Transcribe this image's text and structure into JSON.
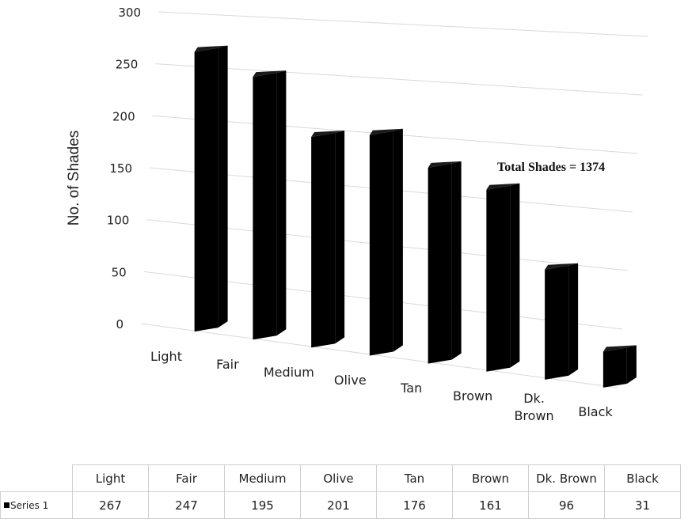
{
  "chart_data": {
    "type": "bar",
    "categories": [
      "Light",
      "Fair",
      "Medium",
      "Olive",
      "Tan",
      "Brown",
      "Dk. Brown",
      "Black"
    ],
    "series": [
      {
        "name": "Series 1",
        "values": [
          267,
          247,
          195,
          201,
          176,
          161,
          96,
          31
        ],
        "color": "#000000"
      }
    ],
    "title": "",
    "xlabel": "",
    "ylabel": "No. of Shades",
    "ylim": [
      0,
      300
    ],
    "yticks": [
      0,
      50,
      100,
      150,
      200,
      250,
      300
    ],
    "grid": true,
    "annotation": "Total Shades = 1374",
    "data_table": true,
    "perspective": "3d"
  }
}
